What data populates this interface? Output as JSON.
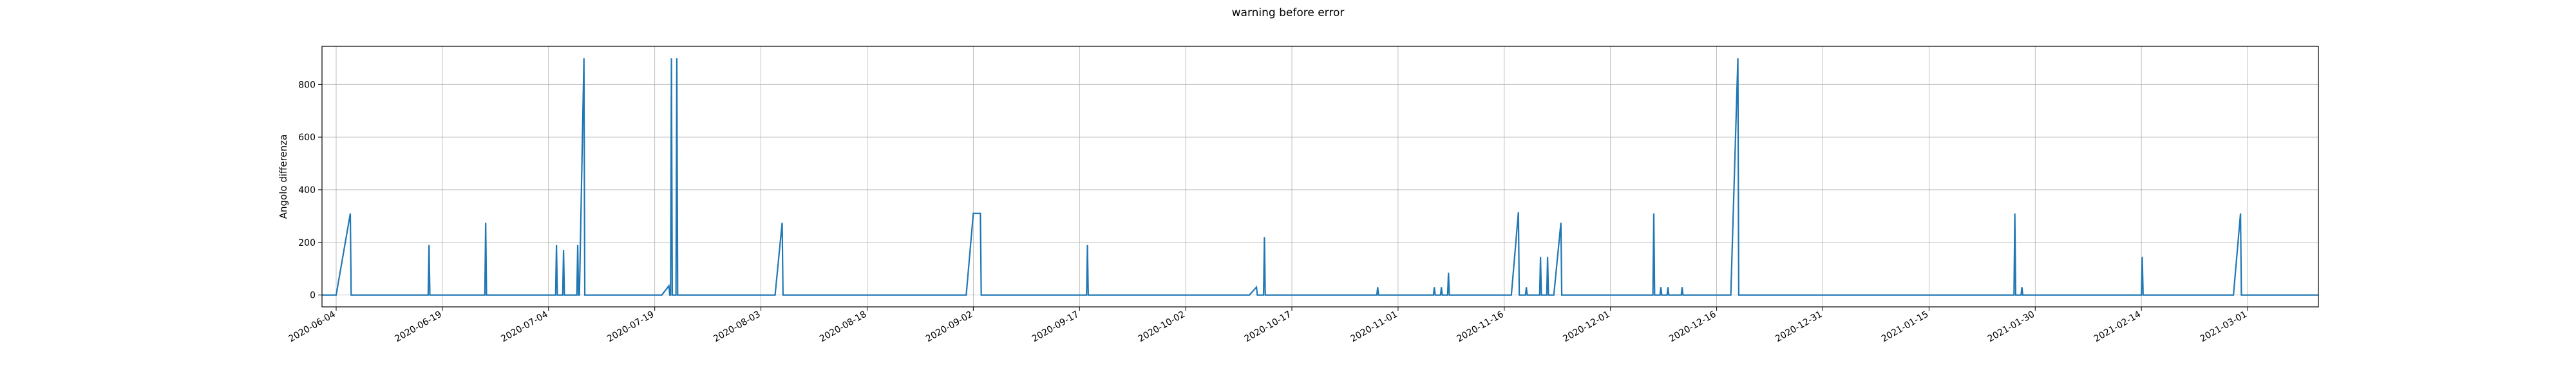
{
  "chart_data": {
    "type": "line",
    "title": "warning before error",
    "xlabel": "",
    "ylabel": "Angolo differenza",
    "x_ticks": [
      "2020-06-04",
      "2020-06-19",
      "2020-07-04",
      "2020-07-19",
      "2020-08-03",
      "2020-08-18",
      "2020-09-02",
      "2020-09-17",
      "2020-10-02",
      "2020-10-17",
      "2020-11-01",
      "2020-11-16",
      "2020-12-01",
      "2020-12-16",
      "2020-12-31",
      "2021-01-15",
      "2021-01-30",
      "2021-02-14",
      "2021-03-01"
    ],
    "y_ticks": [
      0,
      200,
      400,
      600,
      800
    ],
    "xlim": [
      "2020-06-02",
      "2021-03-11"
    ],
    "ylim": [
      -45,
      945
    ],
    "grid": true,
    "color": "#1f77b4",
    "series": [
      {
        "points": [
          [
            "2020-06-02",
            0
          ],
          [
            "2020-06-04",
            0
          ],
          [
            "2020-06-06",
            310
          ],
          [
            "2020-06-06",
            0
          ],
          [
            "2020-06-17",
            0
          ],
          [
            "2020-06-17",
            190
          ],
          [
            "2020-06-17",
            0
          ],
          [
            "2020-06-25",
            0
          ],
          [
            "2020-06-25",
            275
          ],
          [
            "2020-06-25",
            0
          ],
          [
            "2020-07-05",
            0
          ],
          [
            "2020-07-05",
            190
          ],
          [
            "2020-07-05",
            0
          ],
          [
            "2020-07-06",
            0
          ],
          [
            "2020-07-06",
            170
          ],
          [
            "2020-07-06",
            0
          ],
          [
            "2020-07-08",
            0
          ],
          [
            "2020-07-08",
            190
          ],
          [
            "2020-07-08",
            0
          ],
          [
            "2020-07-08",
            0
          ],
          [
            "2020-07-09",
            900
          ],
          [
            "2020-07-09",
            0
          ],
          [
            "2020-07-20",
            0
          ],
          [
            "2020-07-21",
            35
          ],
          [
            "2020-07-21",
            0
          ],
          [
            "2020-07-21",
            0
          ],
          [
            "2020-07-21",
            900
          ],
          [
            "2020-07-21",
            0
          ],
          [
            "2020-07-22",
            0
          ],
          [
            "2020-07-22",
            900
          ],
          [
            "2020-07-22",
            0
          ],
          [
            "2020-08-05",
            0
          ],
          [
            "2020-08-06",
            275
          ],
          [
            "2020-08-06",
            0
          ],
          [
            "2020-09-01",
            0
          ],
          [
            "2020-09-02",
            310
          ],
          [
            "2020-09-03",
            310
          ],
          [
            "2020-09-03",
            0
          ],
          [
            "2020-09-18",
            0
          ],
          [
            "2020-09-18",
            190
          ],
          [
            "2020-09-18",
            0
          ],
          [
            "2020-10-11",
            0
          ],
          [
            "2020-10-12",
            30
          ],
          [
            "2020-10-12",
            0
          ],
          [
            "2020-10-13",
            0
          ],
          [
            "2020-10-13",
            220
          ],
          [
            "2020-10-13",
            0
          ],
          [
            "2020-10-29",
            0
          ],
          [
            "2020-10-29",
            30
          ],
          [
            "2020-10-29",
            0
          ],
          [
            "2020-11-06",
            0
          ],
          [
            "2020-11-06",
            30
          ],
          [
            "2020-11-06",
            0
          ],
          [
            "2020-11-07",
            0
          ],
          [
            "2020-11-07",
            30
          ],
          [
            "2020-11-07",
            0
          ],
          [
            "2020-11-08",
            0
          ],
          [
            "2020-11-08",
            85
          ],
          [
            "2020-11-08",
            0
          ],
          [
            "2020-11-17",
            0
          ],
          [
            "2020-11-18",
            315
          ],
          [
            "2020-11-18",
            0
          ],
          [
            "2020-11-19",
            0
          ],
          [
            "2020-11-19",
            30
          ],
          [
            "2020-11-19",
            0
          ],
          [
            "2020-11-21",
            0
          ],
          [
            "2020-11-21",
            145
          ],
          [
            "2020-11-21",
            0
          ],
          [
            "2020-11-22",
            0
          ],
          [
            "2020-11-22",
            145
          ],
          [
            "2020-11-22",
            0
          ],
          [
            "2020-11-23",
            0
          ],
          [
            "2020-11-24",
            275
          ],
          [
            "2020-11-24",
            0
          ],
          [
            "2020-12-07",
            0
          ],
          [
            "2020-12-07",
            310
          ],
          [
            "2020-12-07",
            0
          ],
          [
            "2020-12-08",
            0
          ],
          [
            "2020-12-08",
            30
          ],
          [
            "2020-12-08",
            0
          ],
          [
            "2020-12-09",
            0
          ],
          [
            "2020-12-09",
            30
          ],
          [
            "2020-12-09",
            0
          ],
          [
            "2020-12-11",
            0
          ],
          [
            "2020-12-11",
            30
          ],
          [
            "2020-12-11",
            0
          ],
          [
            "2020-12-18",
            0
          ],
          [
            "2020-12-19",
            900
          ],
          [
            "2020-12-19",
            0
          ],
          [
            "2021-01-27",
            0
          ],
          [
            "2021-01-27",
            310
          ],
          [
            "2021-01-27",
            0
          ],
          [
            "2021-01-28",
            0
          ],
          [
            "2021-01-28",
            30
          ],
          [
            "2021-01-28",
            0
          ],
          [
            "2021-02-14",
            0
          ],
          [
            "2021-02-14",
            145
          ],
          [
            "2021-02-14",
            0
          ],
          [
            "2021-02-27",
            0
          ],
          [
            "2021-02-28",
            310
          ],
          [
            "2021-02-28",
            0
          ],
          [
            "2021-03-11",
            0
          ]
        ]
      }
    ]
  }
}
